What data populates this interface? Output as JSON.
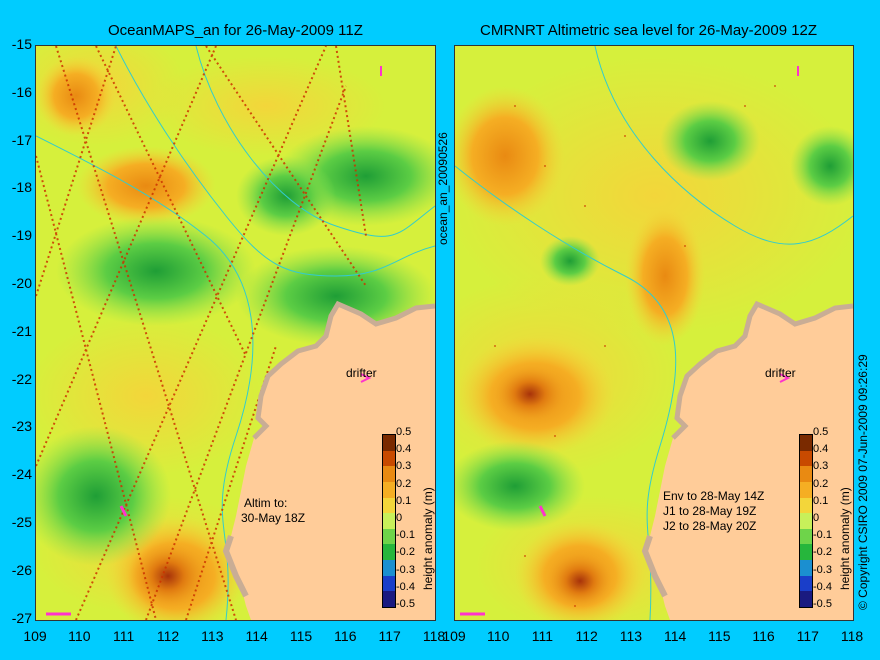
{
  "left_panel": {
    "title": "OceanMAPS_an for 26-May-2009 11Z",
    "drifter_label": "drifter",
    "altim_label": "Altim to:",
    "altim_date": "30-May 18Z",
    "colorbar_label": "height anomaly (m)"
  },
  "right_panel": {
    "title": "CMRNRT Altimetric sea level  for 26-May-2009 12Z",
    "drifter_label": "drifter",
    "env_line": "Env to 28-May 14Z",
    "j1_line": "J1 to 28-May 19Z",
    "j2_line": "J2 to 28-May 20Z",
    "colorbar_label": "height anomaly (m)"
  },
  "side_label": "ocean_an_20090526",
  "copyright": "© Copyright CSIRO 2009   07-Jun-2009 09:26:29",
  "y_axis": [
    "-15",
    "-16",
    "-17",
    "-18",
    "-19",
    "-20",
    "-21",
    "-22",
    "-23",
    "-24",
    "-25",
    "-26",
    "-27"
  ],
  "x_axis_left": [
    "109",
    "110",
    "111",
    "112",
    "113",
    "114",
    "115",
    "116",
    "117",
    "118"
  ],
  "x_axis_right": [
    "109",
    "110",
    "111",
    "112",
    "113",
    "114",
    "115",
    "116",
    "117",
    "118"
  ],
  "colorbar_ticks": [
    "0.5",
    "0.4",
    "0.3",
    "0.2",
    "0.1",
    "0",
    "-0.1",
    "-0.2",
    "-0.3",
    "-0.4",
    "-0.5"
  ],
  "colorbar_colors": [
    "#7a2a00",
    "#c84a00",
    "#e98a12",
    "#f5ae23",
    "#f3d63a",
    "#c8f05a",
    "#6ed44a",
    "#26b63c",
    "#1b8fd0",
    "#1a3ec9",
    "#1a1a80"
  ],
  "map": {
    "ocean_base": "#d6f03c",
    "land_color": "#ffcc99",
    "shelf_color": "#c9ad95",
    "bathymetry_color": "#33cccc",
    "drifter_color": "#ff33cc"
  }
}
